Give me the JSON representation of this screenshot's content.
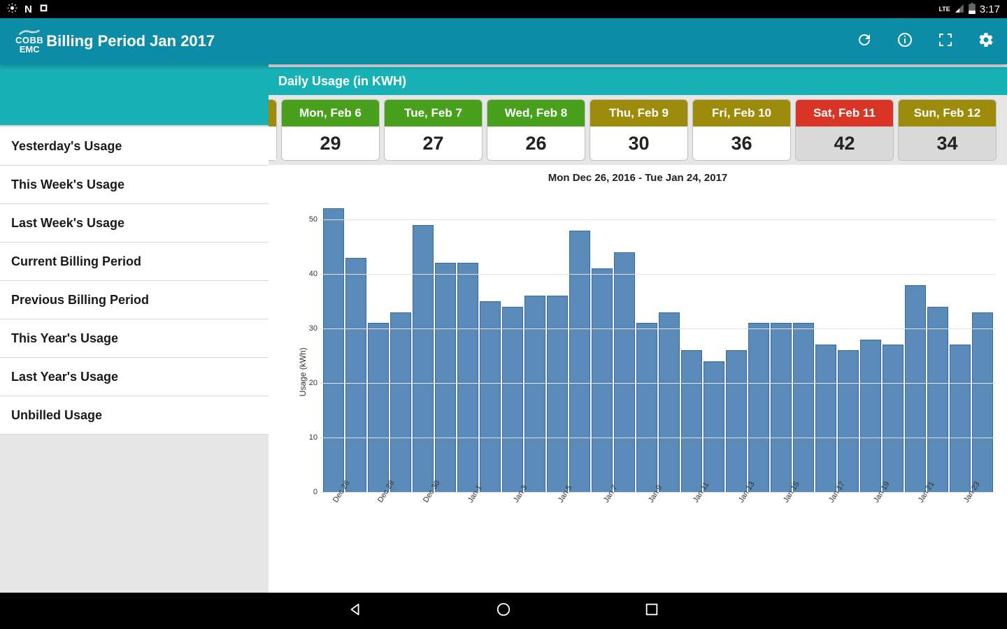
{
  "status": {
    "time": "3:17",
    "lte": "LTE"
  },
  "header": {
    "logo_line1": "COBB",
    "logo_line2": "EMC",
    "title": "Billing Period Jan 2017"
  },
  "sidebar": {
    "items": [
      "Yesterday's Usage",
      "This Week's Usage",
      "Last Week's Usage",
      "Current Billing Period",
      "Previous Billing Period",
      "This Year's Usage",
      "Last Year's Usage",
      "Unbilled Usage"
    ]
  },
  "panel": {
    "title": "Daily Usage (in KWH)"
  },
  "day_cards": {
    "partial_head_color": "#9d8b0c",
    "cards": [
      {
        "label": "Mon, Feb 6",
        "value": "29",
        "head_color": "#49a01c",
        "body_bg": "#ffffff"
      },
      {
        "label": "Tue, Feb 7",
        "value": "27",
        "head_color": "#49a01c",
        "body_bg": "#ffffff"
      },
      {
        "label": "Wed, Feb 8",
        "value": "26",
        "head_color": "#49a01c",
        "body_bg": "#ffffff"
      },
      {
        "label": "Thu, Feb 9",
        "value": "30",
        "head_color": "#9d8b0c",
        "body_bg": "#ffffff"
      },
      {
        "label": "Fri, Feb 10",
        "value": "36",
        "head_color": "#9d8b0c",
        "body_bg": "#ffffff"
      },
      {
        "label": "Sat, Feb 11",
        "value": "42",
        "head_color": "#d83526",
        "body_bg": "#d9d9d9"
      },
      {
        "label": "Sun, Feb 12",
        "value": "34",
        "head_color": "#9d8b0c",
        "body_bg": "#d9d9d9"
      }
    ]
  },
  "chart": {
    "type": "bar",
    "title": "Mon Dec 26, 2016 - Tue Jan 24, 2017",
    "ylabel": "Usage (kWh)",
    "ymax": 55,
    "yticks": [
      0,
      10,
      20,
      30,
      40,
      50
    ],
    "bar_color": "#5a8bb8",
    "bar_border": "#3a6a96",
    "grid_color": "#e2e2e2",
    "background": "#ffffff",
    "categories": [
      "Dec 26",
      "Dec 27",
      "Dec 28",
      "Dec 29",
      "Dec 30",
      "Dec 31",
      "Jan 1",
      "Jan 2",
      "Jan 3",
      "Jan 4",
      "Jan 5",
      "Jan 6",
      "Jan 7",
      "Jan 8",
      "Jan 9",
      "Jan 10",
      "Jan 11",
      "Jan 12",
      "Jan 13",
      "Jan 14",
      "Jan 15",
      "Jan 16",
      "Jan 17",
      "Jan 18",
      "Jan 19",
      "Jan 20",
      "Jan 21",
      "Jan 22",
      "Jan 23",
      "Jan 24"
    ],
    "x_labels_shown": [
      "Dec 26",
      "Dec 28",
      "Dec 30",
      "Jan 1",
      "Jan 3",
      "Jan 5",
      "Jan 7",
      "Jan 9",
      "Jan 11",
      "Jan 13",
      "Jan 15",
      "Jan 17",
      "Jan 19",
      "Jan 21",
      "Jan 23"
    ],
    "values": [
      52,
      43,
      31,
      33,
      49,
      42,
      42,
      35,
      34,
      36,
      36,
      48,
      41,
      44,
      31,
      33,
      26,
      24,
      26,
      31,
      31,
      31,
      27,
      26,
      28,
      27,
      38,
      34,
      27,
      33
    ]
  }
}
